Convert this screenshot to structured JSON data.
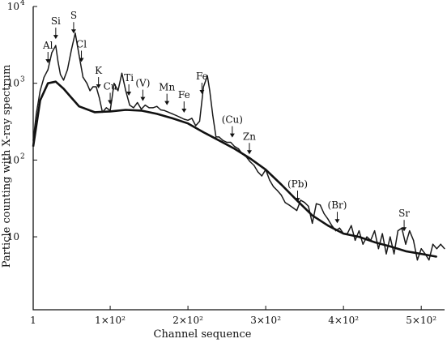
{
  "chart_data": {
    "type": "line",
    "xlabel": "Channel sequence",
    "ylabel": "Particle counting with X-ray spectrum",
    "xlim": [
      1,
      530
    ],
    "ylim_log10": [
      0.05,
      4.0
    ],
    "y_scale": "log",
    "grid": false,
    "x_ticks": [
      {
        "value": 1,
        "label": "1"
      },
      {
        "value": 100,
        "label": "1×10²"
      },
      {
        "value": 200,
        "label": "2×10²"
      },
      {
        "value": 300,
        "label": "3×10²"
      },
      {
        "value": 400,
        "label": "4×10²"
      },
      {
        "value": 500,
        "label": "5×10²"
      }
    ],
    "y_ticks": [
      {
        "value": 10,
        "label": "10",
        "sup": ""
      },
      {
        "value": 100,
        "label": "10",
        "sup": "2"
      },
      {
        "value": 1000,
        "label": "10",
        "sup": "3"
      },
      {
        "value": 10000,
        "label": "10",
        "sup": "4"
      }
    ],
    "series": [
      {
        "role": "measured",
        "x": [
          1,
          5,
          10,
          15,
          20,
          25,
          30,
          33,
          36,
          40,
          45,
          50,
          55,
          60,
          65,
          70,
          74,
          78,
          82,
          86,
          90,
          95,
          100,
          105,
          110,
          115,
          120,
          125,
          130,
          135,
          140,
          145,
          150,
          155,
          160,
          165,
          170,
          175,
          180,
          185,
          190,
          195,
          200,
          205,
          210,
          215,
          220,
          225,
          228,
          232,
          236,
          240,
          245,
          250,
          255,
          260,
          265,
          270,
          275,
          280,
          285,
          290,
          295,
          300,
          305,
          310,
          315,
          320,
          325,
          330,
          335,
          340,
          345,
          350,
          355,
          360,
          365,
          370,
          375,
          380,
          385,
          390,
          395,
          400,
          405,
          410,
          415,
          420,
          425,
          430,
          435,
          440,
          445,
          450,
          455,
          460,
          465,
          470,
          475,
          480,
          485,
          490,
          495,
          500,
          505,
          510,
          515,
          520,
          525,
          530
        ],
        "y": [
          180,
          400,
          800,
          1200,
          1500,
          2500,
          3100,
          1900,
          1300,
          1100,
          1500,
          2700,
          4500,
          2300,
          1200,
          1000,
          800,
          900,
          900,
          650,
          420,
          480,
          440,
          1000,
          800,
          1350,
          800,
          520,
          480,
          560,
          460,
          520,
          480,
          480,
          500,
          450,
          440,
          420,
          400,
          380,
          360,
          340,
          330,
          350,
          280,
          320,
          900,
          1250,
          800,
          380,
          200,
          200,
          180,
          170,
          170,
          150,
          140,
          120,
          110,
          95,
          85,
          70,
          62,
          75,
          55,
          45,
          40,
          35,
          28,
          26,
          24,
          22,
          30,
          28,
          25,
          15,
          27,
          26,
          20,
          17,
          14,
          12,
          13,
          11,
          11,
          14,
          9,
          12,
          8,
          10,
          9,
          12,
          7,
          11,
          6,
          10,
          6,
          12,
          13,
          8,
          12,
          9,
          5,
          7,
          6,
          5,
          8,
          7,
          8,
          7
        ]
      },
      {
        "role": "background",
        "x": [
          1,
          10,
          20,
          30,
          40,
          50,
          60,
          80,
          100,
          120,
          140,
          160,
          180,
          200,
          220,
          240,
          260,
          280,
          300,
          320,
          340,
          360,
          380,
          400,
          420,
          440,
          460,
          480,
          500,
          520
        ],
        "y": [
          150,
          600,
          1000,
          1050,
          850,
          650,
          500,
          420,
          430,
          450,
          440,
          400,
          350,
          300,
          230,
          180,
          140,
          105,
          75,
          48,
          30,
          19,
          14,
          11,
          10,
          8.5,
          7.5,
          6.5,
          6,
          5.5
        ]
      }
    ],
    "annotations": [
      {
        "label": "Al",
        "x": 20
      },
      {
        "label": "Si",
        "x": 30
      },
      {
        "label": "S",
        "x": 53
      },
      {
        "label": "Cl",
        "x": 63
      },
      {
        "label": "K",
        "x": 85
      },
      {
        "label": "Cu",
        "x": 100
      },
      {
        "label": "Ti",
        "x": 124
      },
      {
        "label": "(V)",
        "x": 142
      },
      {
        "label": "Mn",
        "x": 173
      },
      {
        "label": "Fe",
        "x": 195
      },
      {
        "label": "Fe",
        "x": 218
      },
      {
        "label": "(Cu)",
        "x": 257
      },
      {
        "label": "Zn",
        "x": 279
      },
      {
        "label": "(Pb)",
        "x": 341
      },
      {
        "label": "(Br)",
        "x": 392
      },
      {
        "label": "Sr",
        "x": 478
      }
    ]
  }
}
